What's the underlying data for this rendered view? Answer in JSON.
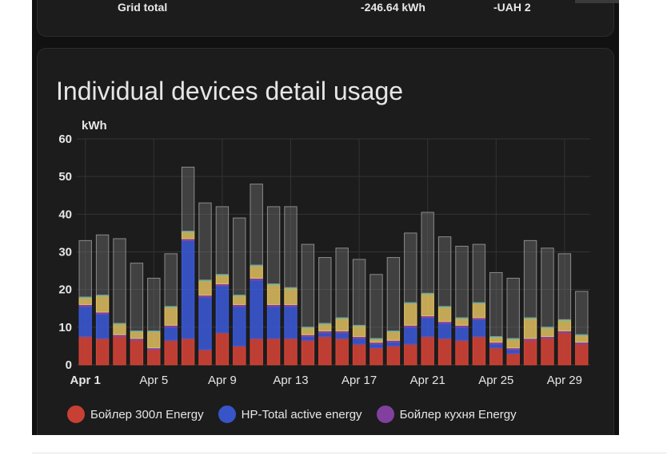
{
  "top_row": {
    "label": "Grid total",
    "energy": "-246.64 kWh",
    "cost": "-UAH 2"
  },
  "card_title": "Individual devices detail usage",
  "chart_data": {
    "type": "bar",
    "stacked": true,
    "ylabel": "kWh",
    "ylim": [
      0,
      60
    ],
    "yticks": [
      0,
      10,
      20,
      30,
      40,
      50,
      60
    ],
    "grid": true,
    "legend_position": "bottom",
    "x_tick_labels": [
      "Apr 1",
      "Apr 5",
      "Apr 9",
      "Apr 13",
      "Apr 17",
      "Apr 21",
      "Apr 25",
      "Apr 29"
    ],
    "x_tick_days": [
      1,
      5,
      9,
      13,
      17,
      21,
      25,
      29
    ],
    "categories": [
      "Apr 1",
      "Apr 2",
      "Apr 3",
      "Apr 4",
      "Apr 5",
      "Apr 6",
      "Apr 7",
      "Apr 8",
      "Apr 9",
      "Apr 10",
      "Apr 11",
      "Apr 12",
      "Apr 13",
      "Apr 14",
      "Apr 15",
      "Apr 16",
      "Apr 17",
      "Apr 18",
      "Apr 19",
      "Apr 20",
      "Apr 21",
      "Apr 22",
      "Apr 23",
      "Apr 24",
      "Apr 25",
      "Apr 26",
      "Apr 27",
      "Apr 28",
      "Apr 29",
      "Apr 30"
    ],
    "series": [
      {
        "name": "Бойлер 300л Energy",
        "color": "#db4437",
        "values": [
          7.5,
          7.0,
          7.5,
          6.5,
          4.0,
          6.5,
          7.0,
          4.0,
          8.5,
          5.0,
          7.0,
          7.0,
          7.0,
          6.5,
          7.5,
          7.0,
          5.5,
          4.5,
          5.0,
          5.5,
          7.5,
          7.0,
          6.5,
          7.5,
          4.5,
          3.0,
          6.5,
          7.0,
          8.5,
          5.5
        ]
      },
      {
        "name": "HP-Total active energy",
        "color": "#3b5bdb",
        "values": [
          8.0,
          6.5,
          0,
          0,
          0,
          3.5,
          26.0,
          14.0,
          12.5,
          10.5,
          15.5,
          8.5,
          8.5,
          1.0,
          1.0,
          1.5,
          1.5,
          1.0,
          1.0,
          4.5,
          5.0,
          4.0,
          3.5,
          4.5,
          1.0,
          1.0,
          0,
          0,
          0,
          0
        ]
      },
      {
        "name": "Бойлер кухня Energy",
        "color": "#8e44ad",
        "values": [
          0.5,
          0.5,
          0.5,
          0.5,
          0.5,
          0.5,
          0.5,
          0.5,
          0.5,
          0.5,
          0.5,
          0.5,
          0.5,
          0.5,
          0.5,
          0.5,
          0.5,
          0.5,
          0.5,
          0.5,
          0.5,
          0.5,
          0.5,
          0.5,
          0.5,
          0.5,
          0.5,
          0.5,
          0.5,
          0.5
        ]
      },
      {
        "values": [
          2.0,
          4.5,
          3.0,
          2.0,
          4.5,
          5.0,
          2.0,
          4.0,
          2.5,
          2.5,
          3.5,
          5.5,
          4.5,
          2.0,
          2.0,
          3.5,
          3.0,
          1.0,
          2.5,
          6.0,
          6.0,
          4.0,
          2.0,
          4.0,
          1.5,
          2.5,
          5.5,
          2.5,
          3.0,
          2.0
        ]
      },
      {
        "values": [
          15.0,
          16.0,
          22.5,
          18.0,
          14.0,
          14.0,
          17.0,
          20.5,
          18.0,
          20.5,
          21.5,
          20.5,
          21.5,
          22.0,
          17.5,
          18.5,
          17.5,
          17.0,
          19.5,
          18.5,
          21.5,
          18.5,
          19.0,
          15.5,
          17.0,
          16.0,
          20.5,
          21.0,
          17.5,
          11.5
        ]
      }
    ]
  },
  "colors": {
    "background": "#111111",
    "card": "#1c1c1c",
    "grid": "#333333",
    "text": "#e6e6e6",
    "extra_series": [
      "#e0c060",
      "#5cc9a7",
      "#6f6f6f"
    ]
  }
}
